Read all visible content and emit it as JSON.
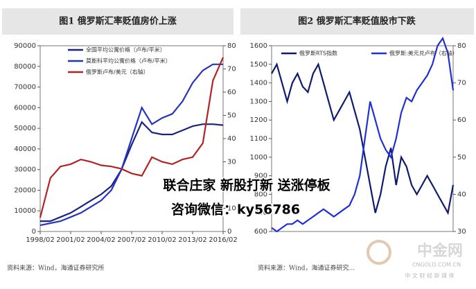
{
  "chart_data": [
    {
      "type": "line",
      "title": "图1 俄罗斯汇率贬值房价上涨",
      "categories": [
        "1998/02",
        null,
        null,
        "2001/02",
        null,
        null,
        "2004/02",
        null,
        null,
        "2007/02",
        null,
        null,
        "2010/02",
        null,
        null,
        "2013/02",
        null,
        null,
        "2016/02"
      ],
      "ylim": [
        0,
        90000
      ],
      "yticks": [
        0,
        10000,
        20000,
        30000,
        40000,
        50000,
        60000,
        70000,
        80000,
        90000
      ],
      "y2lim": [
        0,
        80
      ],
      "y2ticks": [
        0,
        10,
        20,
        30,
        40,
        50,
        60,
        70,
        80
      ],
      "series": [
        {
          "name": "全国平均公寓价格（卢布/平米）",
          "color": "#1a237e",
          "values": [
            5000,
            5000,
            7000,
            9000,
            12000,
            15000,
            18000,
            22000,
            30000,
            42000,
            53000,
            48000,
            47000,
            47000,
            49000,
            51000,
            52000,
            52000,
            51500
          ]
        },
        {
          "name": "莫斯科平均公寓价格（卢布/平米）",
          "color": "#2432c0",
          "values": [
            3000,
            4000,
            5000,
            7000,
            9000,
            12000,
            15000,
            20000,
            30000,
            45000,
            60000,
            52000,
            55000,
            57000,
            63000,
            72000,
            78000,
            81000,
            81000
          ]
        },
        {
          "name": "俄罗斯卢布/美元（右轴）",
          "color": "#b22222",
          "axis": "y2",
          "values": [
            6,
            23,
            28,
            29,
            31,
            30,
            28.5,
            28,
            27,
            25,
            24,
            32,
            30,
            29,
            31,
            32,
            38,
            65,
            75
          ]
        }
      ]
    },
    {
      "type": "line",
      "title": "图2 俄罗斯汇率贬值股市下跌",
      "categories": [
        null,
        null,
        null,
        null,
        null,
        null,
        null,
        null,
        null,
        null,
        null,
        null,
        null,
        null,
        null,
        null,
        null,
        null,
        null,
        null,
        null,
        null,
        null,
        null,
        null,
        null,
        null,
        null,
        null,
        null,
        null,
        null,
        null,
        null,
        null,
        null
      ],
      "ylim": [
        600,
        1600
      ],
      "yticks": [
        600,
        700,
        800,
        900,
        1000,
        1100,
        1200,
        1300,
        1400,
        1500,
        1600
      ],
      "y2lim": [
        30,
        80
      ],
      "y2ticks": [
        30,
        40,
        50,
        60,
        70,
        80
      ],
      "series": [
        {
          "name": "俄罗斯RTS指数",
          "color": "#0d1a6e",
          "values": [
            1450,
            1500,
            1400,
            1300,
            1400,
            1450,
            1380,
            1350,
            1450,
            1500,
            1400,
            1300,
            1200,
            1250,
            1300,
            1350,
            1250,
            1150,
            1000,
            850,
            700,
            800,
            950,
            1050,
            850,
            1000,
            950,
            850,
            800,
            850,
            900,
            850,
            800,
            750,
            700,
            850
          ]
        },
        {
          "name": "俄罗斯:美元兑卢布（右轴）",
          "color": "#1f2fd6",
          "axis": "y2",
          "values": [
            31,
            30,
            31,
            32,
            32,
            33,
            32,
            33,
            34,
            35,
            36,
            35,
            34,
            35,
            36,
            37,
            40,
            45,
            55,
            65,
            60,
            55,
            52,
            50,
            55,
            62,
            66,
            65,
            68,
            70,
            72,
            75,
            80,
            82,
            78,
            68
          ]
        }
      ]
    }
  ],
  "sources": [
    "资料来源：Wind，海通证券研究所",
    "资料来源：Wind，海通证券研究..."
  ],
  "overlay": {
    "line1": "联合庄家 新股打新 送涨停板",
    "line2": "咨询微信：ky56786"
  },
  "logo": {
    "name": "中金网",
    "url": "CNGOLD.COM.CN",
    "slogan": "中 文 财 经 新 媒 体"
  }
}
